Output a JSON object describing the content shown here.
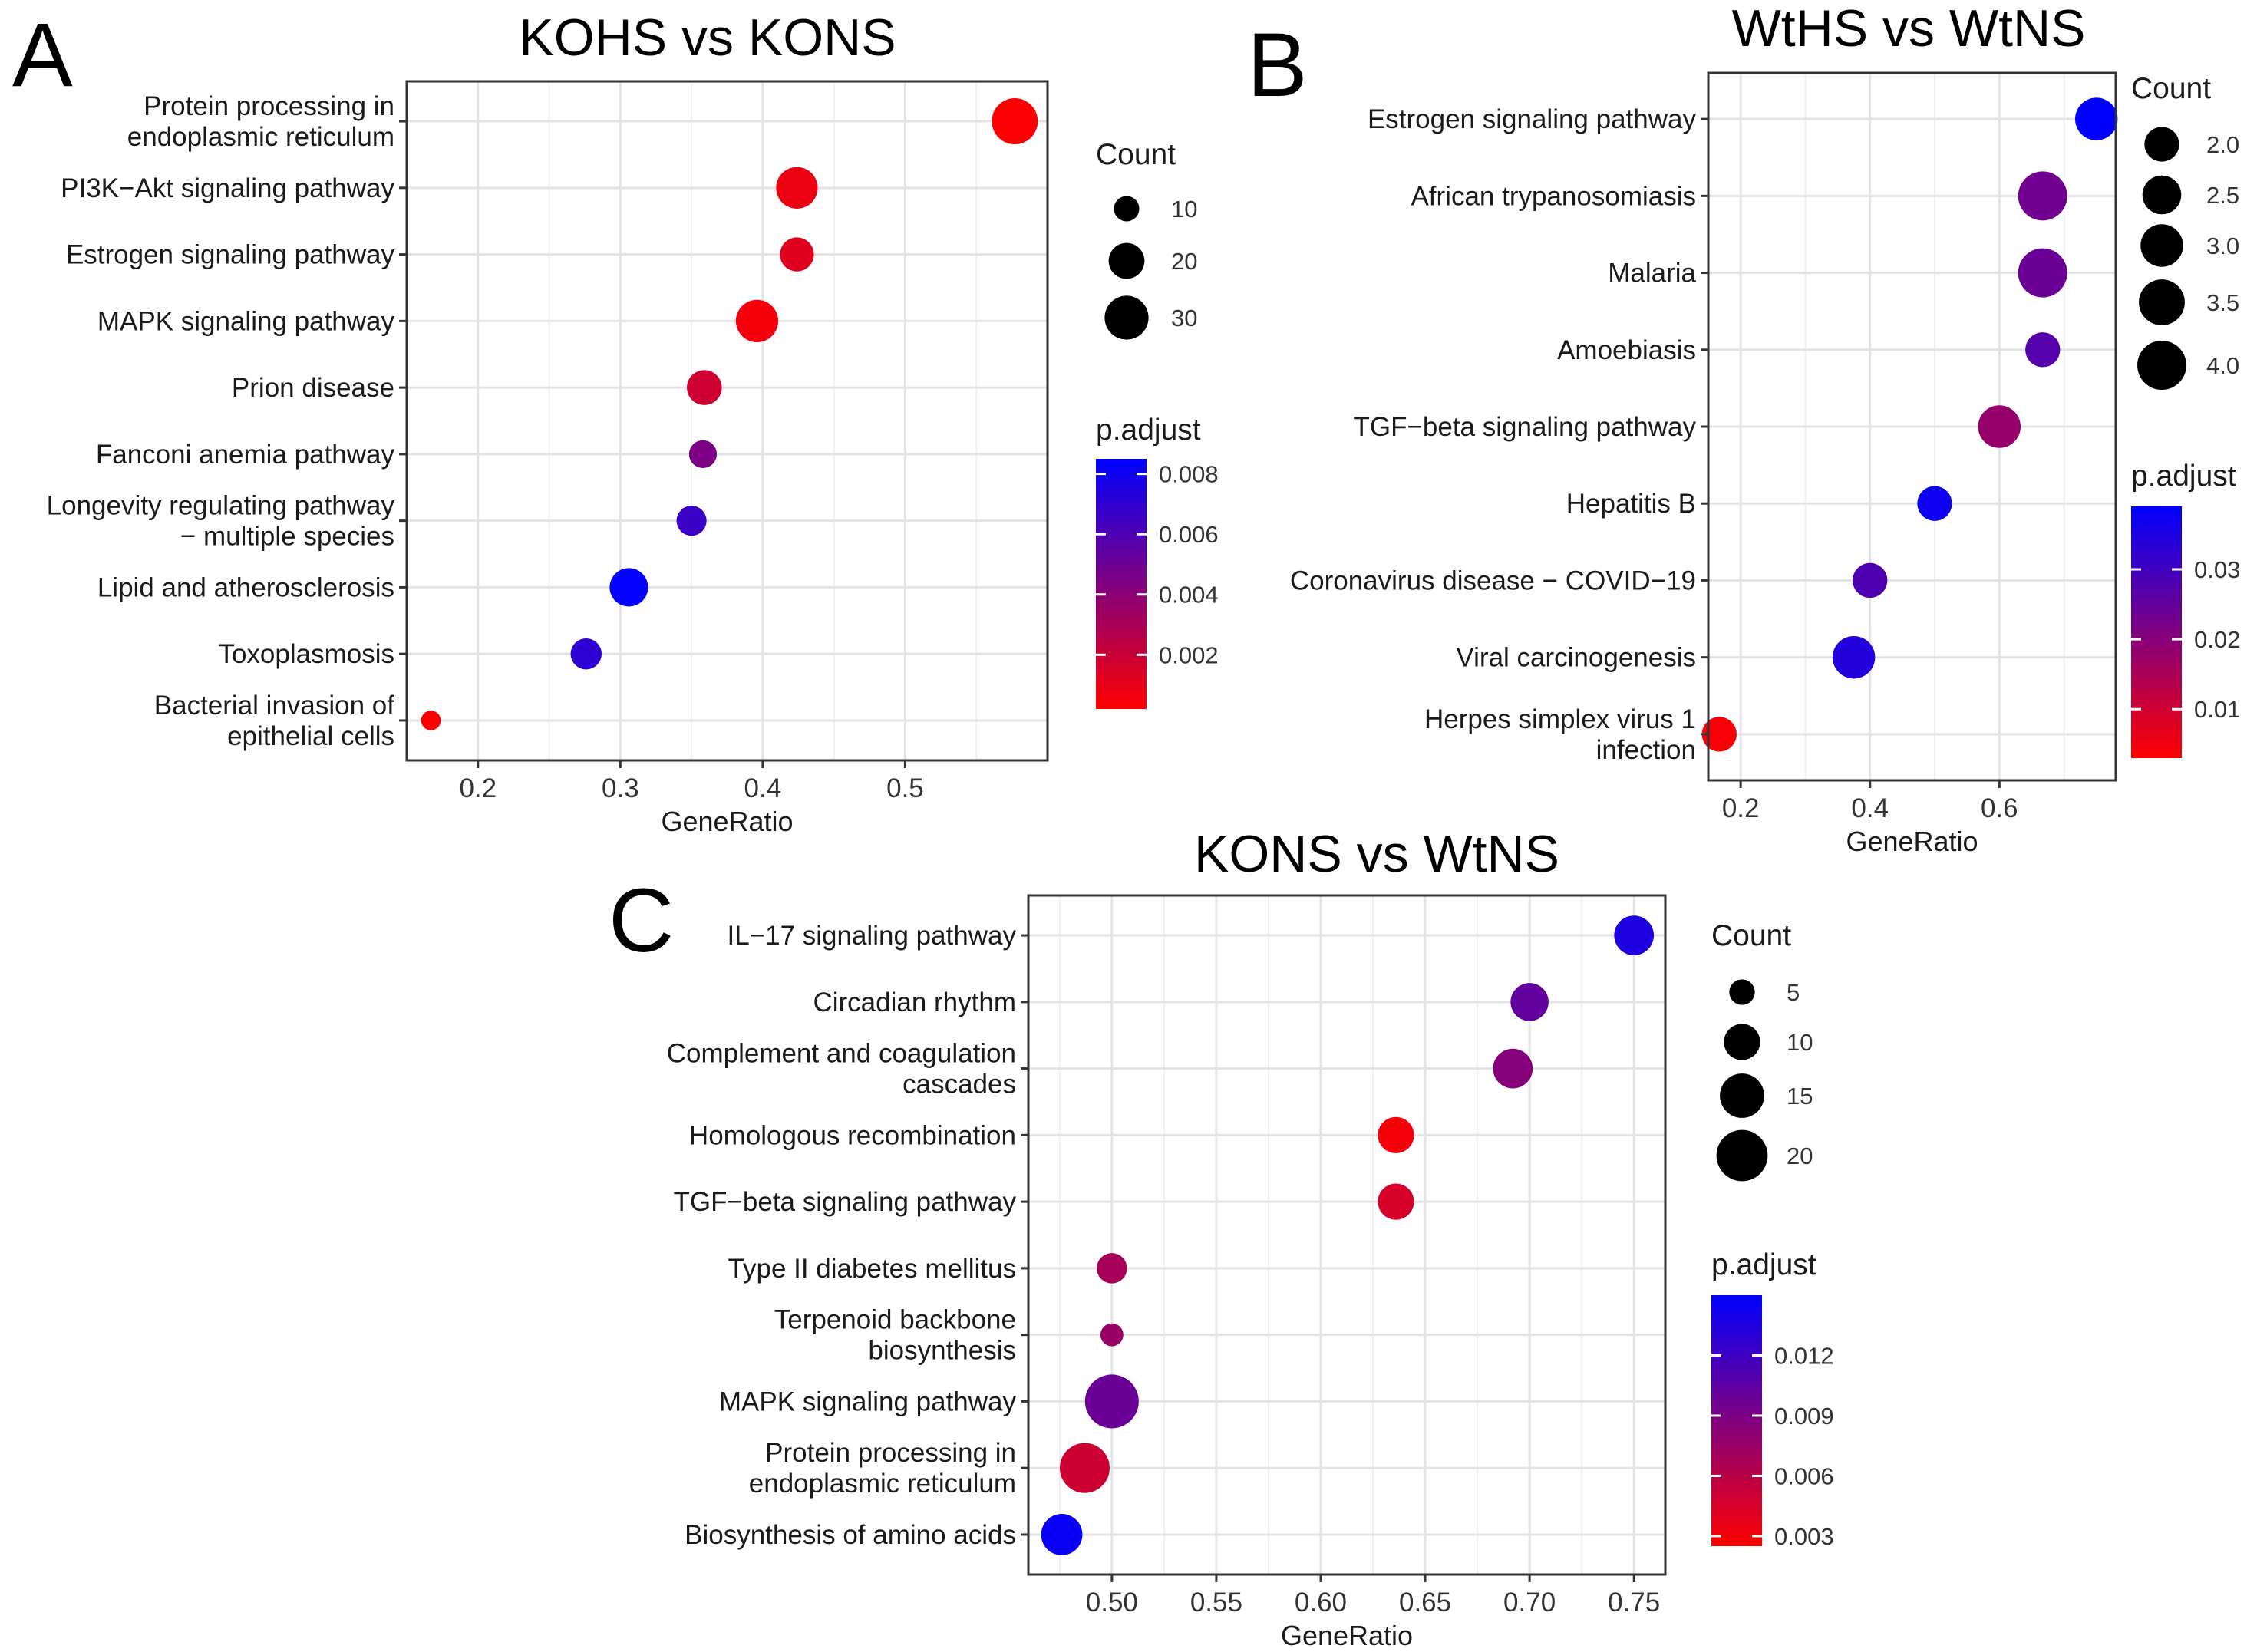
{
  "chart_data": [
    {
      "type": "scatter",
      "panel_label": "A",
      "title": "KOHS vs KONS",
      "xlabel": "GeneRatio",
      "ylabel": "",
      "xlim": [
        0.15,
        0.6
      ],
      "xticks": [
        0.2,
        0.3,
        0.4,
        0.5
      ],
      "tick_labels": [
        "0.2",
        "0.3",
        "0.4",
        "0.5"
      ],
      "grid": true,
      "legend_placement": "right",
      "categories": [
        "Protein processing in\nendoplasmic reticulum",
        "PI3K−Akt signaling pathway",
        "Estrogen signaling pathway",
        "MAPK signaling pathway",
        "Prion disease",
        "Fanconi anemia pathway",
        "Longevity regulating pathway\n− multiple species",
        "Lipid and atherosclerosis",
        "Toxoplasmosis",
        "Bacterial invasion of\nepithelial cells"
      ],
      "points": [
        {
          "x": 0.577,
          "count": 33,
          "p_adjust": 0.0003
        },
        {
          "x": 0.424,
          "count": 27,
          "p_adjust": 0.0008
        },
        {
          "x": 0.424,
          "count": 18,
          "p_adjust": 0.0012
        },
        {
          "x": 0.396,
          "count": 28,
          "p_adjust": 0.0006
        },
        {
          "x": 0.359,
          "count": 19,
          "p_adjust": 0.0018
        },
        {
          "x": 0.358,
          "count": 12,
          "p_adjust": 0.0045
        },
        {
          "x": 0.35,
          "count": 14,
          "p_adjust": 0.0066
        },
        {
          "x": 0.306,
          "count": 23,
          "p_adjust": 0.0084
        },
        {
          "x": 0.276,
          "count": 15,
          "p_adjust": 0.007
        },
        {
          "x": 0.167,
          "count": 6,
          "p_adjust": 0.0002
        }
      ],
      "size_legend": {
        "title": "Count",
        "values": [
          10,
          20,
          30
        ],
        "labels": [
          "10",
          "20",
          "30"
        ]
      },
      "color_legend": {
        "title": "p.adjust",
        "range": [
          0.0002,
          0.0085
        ],
        "ticks": [
          0.002,
          0.004,
          0.006,
          0.008
        ],
        "labels": [
          "0.002",
          "0.004",
          "0.006",
          "0.008"
        ]
      }
    },
    {
      "type": "scatter",
      "panel_label": "B",
      "title": "WtHS vs WtNS",
      "xlabel": "GeneRatio",
      "ylabel": "",
      "xlim": [
        0.15,
        0.78
      ],
      "xticks": [
        0.2,
        0.4,
        0.6
      ],
      "tick_labels": [
        "0.2",
        "0.4",
        "0.6"
      ],
      "grid": true,
      "legend_placement": "right",
      "categories": [
        "Estrogen signaling pathway",
        "African trypanosomiasis",
        "Malaria",
        "Amoebiasis",
        "TGF−beta signaling pathway",
        "Hepatitis B",
        "Coronavirus disease − COVID−19",
        "Viral carcinogenesis",
        "Herpes simplex virus 1\ninfection"
      ],
      "points": [
        {
          "x": 0.75,
          "count": 3,
          "p_adjust": 0.039
        },
        {
          "x": 0.667,
          "count": 4,
          "p_adjust": 0.023
        },
        {
          "x": 0.667,
          "count": 4,
          "p_adjust": 0.024
        },
        {
          "x": 0.667,
          "count": 2,
          "p_adjust": 0.027
        },
        {
          "x": 0.6,
          "count": 3,
          "p_adjust": 0.018
        },
        {
          "x": 0.5,
          "count": 2,
          "p_adjust": 0.037
        },
        {
          "x": 0.4,
          "count": 2,
          "p_adjust": 0.028
        },
        {
          "x": 0.375,
          "count": 3,
          "p_adjust": 0.034
        },
        {
          "x": 0.167,
          "count": 2,
          "p_adjust": 0.004
        }
      ],
      "size_legend": {
        "title": "Count",
        "values": [
          2.0,
          2.5,
          3.0,
          3.5,
          4.0
        ],
        "labels": [
          "2.0",
          "2.5",
          "3.0",
          "3.5",
          "4.0"
        ]
      },
      "color_legend": {
        "title": "p.adjust",
        "range": [
          0.003,
          0.039
        ],
        "ticks": [
          0.01,
          0.02,
          0.03
        ],
        "labels": [
          "0.01",
          "0.02",
          "0.03"
        ]
      }
    },
    {
      "type": "scatter",
      "panel_label": "C",
      "title": "KONS vs WtNS",
      "xlabel": "GeneRatio",
      "ylabel": "",
      "xlim": [
        0.46,
        0.765
      ],
      "xticks": [
        0.5,
        0.55,
        0.6,
        0.65,
        0.7,
        0.75
      ],
      "tick_labels": [
        "0.50",
        "0.55",
        "0.60",
        "0.65",
        "0.70",
        "0.75"
      ],
      "grid": true,
      "legend_placement": "right",
      "categories": [
        "IL−17 signaling pathway",
        "Circadian rhythm",
        "Complement and coagulation\ncascades",
        "Homologous recombination",
        "TGF−beta signaling pathway",
        "Type II diabetes mellitus",
        "Terpenoid backbone\nbiosynthesis",
        "MAPK signaling pathway",
        "Protein processing in\nendoplasmic reticulum",
        "Biosynthesis of amino acids"
      ],
      "points": [
        {
          "x": 0.75,
          "count": 12,
          "p_adjust": 0.0135
        },
        {
          "x": 0.7,
          "count": 11,
          "p_adjust": 0.0102
        },
        {
          "x": 0.692,
          "count": 12,
          "p_adjust": 0.0085
        },
        {
          "x": 0.636,
          "count": 10,
          "p_adjust": 0.003
        },
        {
          "x": 0.636,
          "count": 10,
          "p_adjust": 0.0045
        },
        {
          "x": 0.5,
          "count": 7,
          "p_adjust": 0.0068
        },
        {
          "x": 0.5,
          "count": 4,
          "p_adjust": 0.0075
        },
        {
          "x": 0.5,
          "count": 22,
          "p_adjust": 0.0098
        },
        {
          "x": 0.487,
          "count": 19,
          "p_adjust": 0.005
        },
        {
          "x": 0.476,
          "count": 13,
          "p_adjust": 0.0145
        }
      ],
      "size_legend": {
        "title": "Count",
        "values": [
          5,
          10,
          15,
          20
        ],
        "labels": [
          "5",
          "10",
          "15",
          "20"
        ]
      },
      "color_legend": {
        "title": "p.adjust",
        "range": [
          0.0025,
          0.015
        ],
        "ticks": [
          0.003,
          0.006,
          0.009,
          0.012
        ],
        "labels": [
          "0.003",
          "0.006",
          "0.009",
          "0.012"
        ]
      }
    }
  ]
}
